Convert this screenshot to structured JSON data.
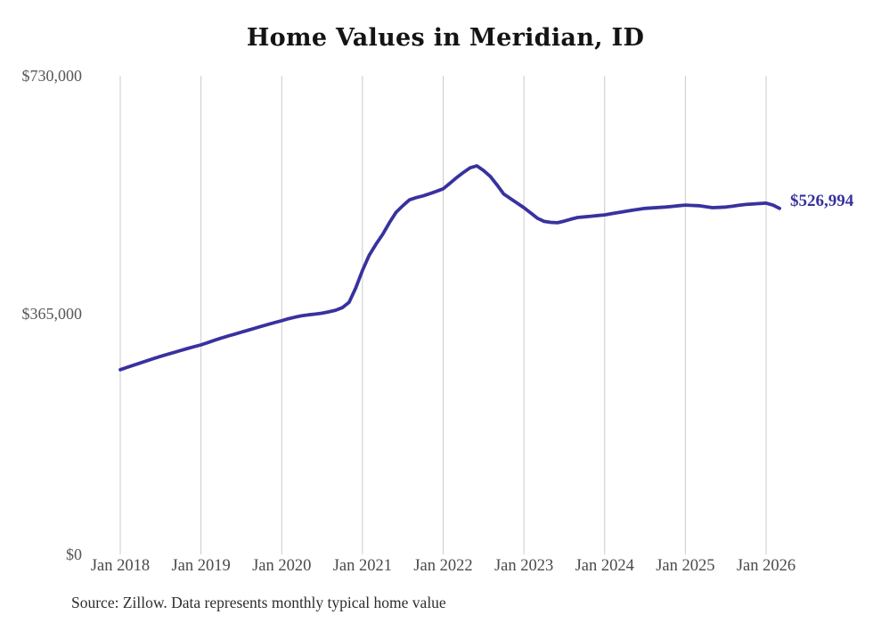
{
  "title": "Home Values in Meridian, ID",
  "source_note": "Source: Zillow. Data represents monthly typical home value",
  "colors": {
    "line": "#38329e",
    "grid": "#cbcbcb",
    "axis_text": "#4a4a4a",
    "y_axis_text": "#575757",
    "title_text": "#141414",
    "source_text": "#2e2e2e"
  },
  "chart_data": {
    "type": "line",
    "title": "Home Values in Meridian, ID",
    "series_name": "Typical home value",
    "x_start_month": "2018-01",
    "x_end_month": "2026-03",
    "x_tick_labels": [
      "Jan 2018",
      "Jan 2019",
      "Jan 2020",
      "Jan 2021",
      "Jan 2022",
      "Jan 2023",
      "Jan 2024",
      "Jan 2025",
      "Jan 2026"
    ],
    "y_tick_labels": [
      "$0",
      "$365,000",
      "$730,000"
    ],
    "y_tick_values": [
      0,
      365000,
      730000
    ],
    "ylim": [
      0,
      730000
    ],
    "grid": "vertical-only",
    "legend": "none",
    "final_value_label": "$526,994",
    "final_value": 526994,
    "values_monthly": [
      280000,
      283500,
      287000,
      290400,
      293800,
      297200,
      300500,
      303500,
      306500,
      309500,
      312500,
      315300,
      318000,
      321500,
      325000,
      328500,
      331500,
      334500,
      337500,
      340500,
      343500,
      346500,
      349500,
      352300,
      355000,
      358000,
      360500,
      362500,
      364000,
      365200,
      366500,
      368500,
      371000,
      375000,
      383000,
      405000,
      432000,
      455000,
      472000,
      487000,
      505000,
      521000,
      531000,
      540000,
      543500,
      546000,
      549500,
      553000,
      557000,
      565500,
      574000,
      582000,
      589000,
      592000,
      585000,
      576000,
      563000,
      549000,
      542000,
      535000,
      528000,
      520000,
      512000,
      507000,
      505500,
      505000,
      507500,
      510500,
      513000,
      514000,
      515000,
      516000,
      517000,
      518800,
      520500,
      522300,
      524000,
      525500,
      527000,
      527700,
      528300,
      529000,
      530000,
      531000,
      532000,
      531500,
      531000,
      529500,
      528000,
      528500,
      529000,
      530300,
      531700,
      533000,
      533700,
      534300,
      535000,
      532000,
      526994
    ]
  }
}
